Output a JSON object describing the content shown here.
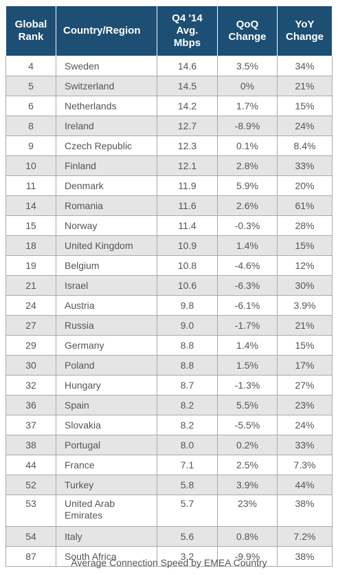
{
  "chart_data": {
    "type": "table",
    "columns": [
      "Global Rank",
      "Country/Region",
      "Q4 '14 Avg. Mbps",
      "QoQ Change",
      "YoY Change"
    ],
    "rows": [
      [
        "4",
        "Sweden",
        "14.6",
        "3.5%",
        "34%"
      ],
      [
        "5",
        "Switzerland",
        "14.5",
        "0%",
        "21%"
      ],
      [
        "6",
        "Netherlands",
        "14.2",
        "1.7%",
        "15%"
      ],
      [
        "8",
        "Ireland",
        "12.7",
        "-8.9%",
        "24%"
      ],
      [
        "9",
        "Czech Republic",
        "12.3",
        "0.1%",
        "8.4%"
      ],
      [
        "10",
        "Finland",
        "12.1",
        "2.8%",
        "33%"
      ],
      [
        "11",
        "Denmark",
        "11.9",
        "5.9%",
        "20%"
      ],
      [
        "14",
        "Romania",
        "11.6",
        "2.6%",
        "61%"
      ],
      [
        "15",
        "Norway",
        "11.4",
        "-0.3%",
        "28%"
      ],
      [
        "18",
        "United Kingdom",
        "10.9",
        "1.4%",
        "15%"
      ],
      [
        "19",
        "Belgium",
        "10.8",
        "-4.6%",
        "12%"
      ],
      [
        "21",
        "Israel",
        "10.6",
        "-6.3%",
        "30%"
      ],
      [
        "24",
        "Austria",
        "9.8",
        "-6.1%",
        "3.9%"
      ],
      [
        "27",
        "Russia",
        "9.0",
        "-1.7%",
        "21%"
      ],
      [
        "29",
        "Germany",
        "8.8",
        "1.4%",
        "15%"
      ],
      [
        "30",
        "Poland",
        "8.8",
        "1.5%",
        "17%"
      ],
      [
        "32",
        "Hungary",
        "8.7",
        "-1.3%",
        "27%"
      ],
      [
        "36",
        "Spain",
        "8.2",
        "5.5%",
        "23%"
      ],
      [
        "37",
        "Slovakia",
        "8.2",
        "-5.5%",
        "24%"
      ],
      [
        "38",
        "Portugal",
        "8.0",
        "0.2%",
        "33%"
      ],
      [
        "44",
        "France",
        "7.1",
        "2.5%",
        "7.3%"
      ],
      [
        "52",
        "Turkey",
        "5.8",
        "3.9%",
        "44%"
      ],
      [
        "53",
        "United Arab Emirates",
        "5.7",
        "23%",
        "38%"
      ],
      [
        "54",
        "Italy",
        "5.6",
        "0.8%",
        "7.2%"
      ],
      [
        "87",
        "South Africa",
        "3.2",
        "-9.9%",
        "38%"
      ]
    ],
    "caption": "Average Connection Speed by EMEA Country"
  },
  "colors": {
    "header_bg": "#1d4e73",
    "header_text": "#ffffff",
    "stripe": "#e5e5e5",
    "cell_text": "#555555"
  }
}
